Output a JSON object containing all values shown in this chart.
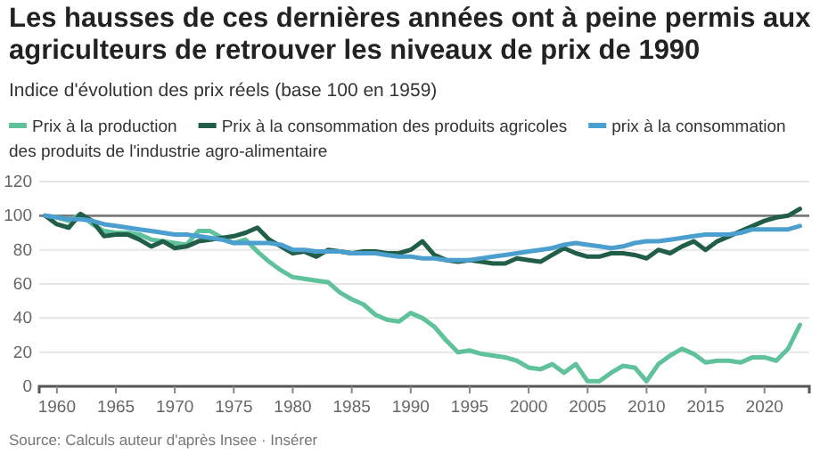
{
  "chart_data": {
    "type": "line",
    "title": "Les hausses de ces dernières années ont à peine permis aux agriculteurs de retrouver les niveaux de prix de 1990",
    "subtitle": "Indice d'évolution des prix réels (base 100 en 1959)",
    "x": [
      1959,
      1960,
      1961,
      1962,
      1963,
      1964,
      1965,
      1966,
      1967,
      1968,
      1969,
      1970,
      1971,
      1972,
      1973,
      1974,
      1975,
      1976,
      1977,
      1978,
      1979,
      1980,
      1981,
      1982,
      1983,
      1984,
      1985,
      1986,
      1987,
      1988,
      1989,
      1990,
      1991,
      1992,
      1993,
      1994,
      1995,
      1996,
      1997,
      1998,
      1999,
      2000,
      2001,
      2002,
      2003,
      2004,
      2005,
      2006,
      2007,
      2008,
      2009,
      2010,
      2011,
      2012,
      2013,
      2014,
      2015,
      2016,
      2017,
      2018,
      2019,
      2020,
      2021,
      2022,
      2023
    ],
    "series": [
      {
        "name": "Prix à la production",
        "color": "#5fc29b",
        "values": [
          100,
          99,
          97,
          101,
          95,
          91,
          90,
          90,
          89,
          86,
          85,
          84,
          83,
          91,
          91,
          87,
          84,
          86,
          79,
          73,
          68,
          64,
          63,
          62,
          61,
          55,
          51,
          48,
          42,
          39,
          38,
          43,
          40,
          35,
          27,
          20,
          21,
          19,
          18,
          17,
          15,
          11,
          10,
          13,
          8,
          13,
          3,
          3,
          8,
          12,
          11,
          3,
          13,
          18,
          22,
          19,
          14,
          15,
          15,
          14,
          17,
          17,
          15,
          22,
          36
        ]
      },
      {
        "name": "Prix à la consommation des produits agricoles",
        "color": "#215e47",
        "values": [
          100,
          95,
          93,
          101,
          97,
          88,
          89,
          89,
          86,
          82,
          85,
          81,
          82,
          85,
          86,
          87,
          88,
          90,
          93,
          86,
          82,
          78,
          79,
          76,
          80,
          79,
          78,
          79,
          79,
          78,
          78,
          80,
          85,
          77,
          74,
          73,
          74,
          73,
          72,
          72,
          75,
          74,
          73,
          77,
          81,
          78,
          76,
          76,
          78,
          78,
          77,
          75,
          80,
          78,
          82,
          85,
          80,
          85,
          88,
          91,
          94,
          97,
          99,
          100,
          104
        ]
      },
      {
        "name": "prix à la consommation des produits de l'industrie agro-alimentaire",
        "color": "#4b9fcf",
        "values": [
          100,
          99,
          98,
          98,
          97,
          95,
          94,
          93,
          92,
          91,
          90,
          89,
          89,
          88,
          87,
          86,
          84,
          84,
          84,
          84,
          83,
          80,
          80,
          79,
          79,
          79,
          78,
          78,
          78,
          77,
          76,
          76,
          75,
          75,
          74,
          74,
          74,
          75,
          76,
          77,
          78,
          79,
          80,
          81,
          83,
          84,
          83,
          82,
          81,
          82,
          84,
          85,
          85,
          86,
          87,
          88,
          89,
          89,
          89,
          90,
          92,
          92,
          92,
          92,
          94
        ]
      }
    ],
    "xlim": [
      1958.5,
      2023.8
    ],
    "xticks": [
      1960,
      1965,
      1970,
      1975,
      1980,
      1985,
      1990,
      1995,
      2000,
      2005,
      2010,
      2015,
      2020
    ],
    "ylim": [
      0,
      120
    ],
    "yticks": [
      0,
      20,
      40,
      60,
      80,
      100,
      120
    ],
    "ref_lines": [
      {
        "axis": "y",
        "value": 100,
        "color": "#7a7a7a"
      }
    ],
    "grid": "y",
    "legend": "top",
    "marker": "none",
    "line_style": "solid",
    "annotations": [
      "Source: Calculs auteur d'après Insee · Insérer"
    ]
  }
}
